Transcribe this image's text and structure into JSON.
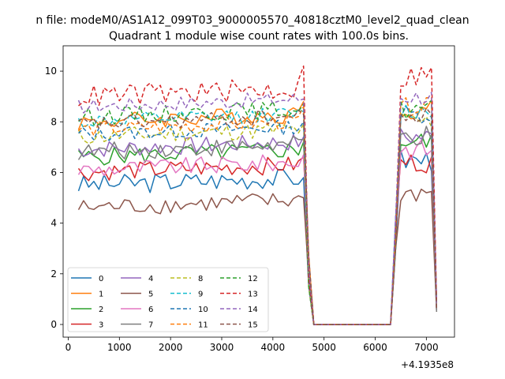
{
  "chart_data": {
    "type": "line",
    "suptitle": "n file: modeM0/AS1A12_099T03_9000005570_40818cztM0_level2_quad_clean",
    "title": "Quadrant 1 module wise count rates with 100.0s bins.",
    "xlabel": "",
    "ylabel": "",
    "x_offset_label": "+4.1935e8",
    "xlim": [
      -100,
      7550
    ],
    "ylim": [
      -0.5,
      11
    ],
    "xticks": [
      0,
      1000,
      2000,
      3000,
      4000,
      5000,
      6000,
      7000
    ],
    "yticks": [
      0,
      2,
      4,
      6,
      8,
      10
    ],
    "grid": false,
    "legend_position": "lower-left",
    "segments": [
      {
        "start": 200,
        "end": 4600,
        "step": 100
      },
      {
        "start": 4700,
        "end": 4800,
        "step": 100
      },
      {
        "start": 4800,
        "end": 6300,
        "step": 100
      },
      {
        "start": 6400,
        "end": 7200,
        "step": 100
      }
    ],
    "series": [
      {
        "name": "0",
        "color": "#1f77b4",
        "dash": "",
        "base": 5.5,
        "amp": 0.4,
        "gap_end": 5.8,
        "post": 6.5,
        "tail": 0.55
      },
      {
        "name": "1",
        "color": "#ff7f0e",
        "dash": "",
        "base": 8.0,
        "amp": 0.35,
        "gap_end": 8.8,
        "post": 8.5,
        "tail": 0.8
      },
      {
        "name": "2",
        "color": "#2ca02c",
        "dash": "",
        "base": 6.6,
        "amp": 0.35,
        "gap_end": 7.2,
        "post": 7.2,
        "tail": 0.7
      },
      {
        "name": "3",
        "color": "#d62728",
        "dash": "",
        "base": 6.0,
        "amp": 0.35,
        "gap_end": 6.6,
        "post": 6.4,
        "tail": 0.6
      },
      {
        "name": "4",
        "color": "#9467bd",
        "dash": "",
        "base": 6.9,
        "amp": 0.35,
        "gap_end": 7.4,
        "post": 7.4,
        "tail": 0.7
      },
      {
        "name": "5",
        "color": "#8c564b",
        "dash": "",
        "base": 4.6,
        "amp": 0.35,
        "gap_end": 5.0,
        "post": 5.2,
        "tail": 0.5
      },
      {
        "name": "6",
        "color": "#e377c2",
        "dash": "",
        "base": 6.1,
        "amp": 0.35,
        "gap_end": 6.7,
        "post": 6.9,
        "tail": 0.65
      },
      {
        "name": "7",
        "color": "#7f7f7f",
        "dash": "",
        "base": 6.8,
        "amp": 0.35,
        "gap_end": 7.3,
        "post": 7.4,
        "tail": 0.5
      },
      {
        "name": "8",
        "color": "#bcbd22",
        "dash": "5,3",
        "base": 7.4,
        "amp": 0.35,
        "gap_end": 7.9,
        "post": 8.0,
        "tail": 0.75
      },
      {
        "name": "9",
        "color": "#17becf",
        "dash": "5,3",
        "base": 8.0,
        "amp": 0.3,
        "gap_end": 8.4,
        "post": 8.4,
        "tail": 0.8
      },
      {
        "name": "10",
        "color": "#1f77b4",
        "dash": "5,3",
        "base": 7.5,
        "amp": 0.3,
        "gap_end": 8.0,
        "post": 8.3,
        "tail": 0.75
      },
      {
        "name": "11",
        "color": "#ff7f0e",
        "dash": "5,3",
        "base": 7.7,
        "amp": 0.3,
        "gap_end": 8.6,
        "post": 8.6,
        "tail": 0.8
      },
      {
        "name": "12",
        "color": "#2ca02c",
        "dash": "5,3",
        "base": 8.2,
        "amp": 0.35,
        "gap_end": 8.7,
        "post": 8.5,
        "tail": 0.85
      },
      {
        "name": "13",
        "color": "#d62728",
        "dash": "5,3",
        "base": 9.0,
        "amp": 0.45,
        "gap_end": 10.2,
        "post": 9.8,
        "tail": 0.9
      },
      {
        "name": "14",
        "color": "#9467bd",
        "dash": "5,3",
        "base": 8.6,
        "amp": 0.3,
        "gap_end": 8.9,
        "post": 9.0,
        "tail": 0.85
      },
      {
        "name": "15",
        "color": "#8c564b",
        "dash": "5,3",
        "base": 7.9,
        "amp": 0.3,
        "gap_end": 8.3,
        "post": 8.2,
        "tail": 0.6
      }
    ]
  }
}
